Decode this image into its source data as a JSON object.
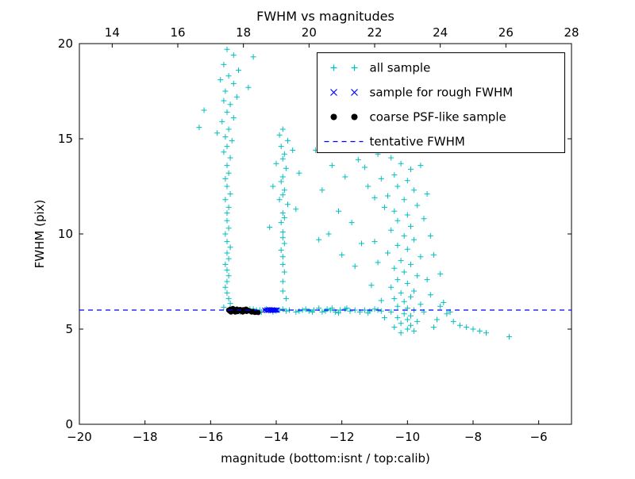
{
  "chart_data": {
    "type": "scatter",
    "title": "FWHM vs magnitudes",
    "xlabel": "magnitude (bottom:isnt / top:calib)",
    "ylabel": "FWHM (pix)",
    "xlim": [
      -20,
      -5
    ],
    "xlim_top": [
      13,
      28
    ],
    "ylim": [
      0,
      20
    ],
    "x_ticks_bottom": [
      -20,
      -18,
      -16,
      -14,
      -12,
      -10,
      -8,
      -6
    ],
    "x_ticks_top": [
      14,
      16,
      18,
      20,
      22,
      24,
      26,
      28
    ],
    "y_ticks": [
      0,
      5,
      10,
      15,
      20
    ],
    "grid": false,
    "legend_position": "upper right",
    "tentative_fwhm_y": 6,
    "colors": {
      "all_sample": "#00bfbf",
      "rough_fwhm": "#0000ff",
      "psf_like": "#000000",
      "tentative_line": "#0000ff"
    },
    "series": [
      {
        "name": "all sample",
        "marker": "plus",
        "color": "#00bfbf",
        "points": [
          [
            -15.5,
            19.7
          ],
          [
            -15.3,
            19.4
          ],
          [
            -14.7,
            19.3
          ],
          [
            -15.6,
            18.9
          ],
          [
            -15.15,
            18.6
          ],
          [
            -15.45,
            18.3
          ],
          [
            -15.7,
            18.1
          ],
          [
            -15.3,
            17.9
          ],
          [
            -14.85,
            17.7
          ],
          [
            -15.55,
            17.5
          ],
          [
            -15.2,
            17.2
          ],
          [
            -15.6,
            17.0
          ],
          [
            -15.4,
            16.8
          ],
          [
            -16.2,
            16.5
          ],
          [
            -15.5,
            16.4
          ],
          [
            -15.3,
            16.1
          ],
          [
            -15.65,
            15.9
          ],
          [
            -16.35,
            15.6
          ],
          [
            -15.45,
            15.5
          ],
          [
            -15.8,
            15.3
          ],
          [
            -15.55,
            15.1
          ],
          [
            -15.35,
            14.9
          ],
          [
            -15.5,
            14.6
          ],
          [
            -15.6,
            14.3
          ],
          [
            -15.4,
            14.0
          ],
          [
            -15.5,
            13.6
          ],
          [
            -15.45,
            13.2
          ],
          [
            -15.55,
            12.9
          ],
          [
            -15.5,
            12.5
          ],
          [
            -15.4,
            12.1
          ],
          [
            -15.55,
            11.8
          ],
          [
            -15.45,
            11.4
          ],
          [
            -15.5,
            11.1
          ],
          [
            -15.5,
            10.7
          ],
          [
            -15.45,
            10.3
          ],
          [
            -15.55,
            10.0
          ],
          [
            -15.5,
            9.6
          ],
          [
            -15.4,
            9.3
          ],
          [
            -15.5,
            9.0
          ],
          [
            -15.45,
            8.7
          ],
          [
            -15.55,
            8.4
          ],
          [
            -15.5,
            8.1
          ],
          [
            -15.45,
            7.8
          ],
          [
            -15.5,
            7.5
          ],
          [
            -15.55,
            7.2
          ],
          [
            -15.5,
            6.9
          ],
          [
            -15.45,
            6.6
          ],
          [
            -15.4,
            6.35
          ],
          [
            -15.6,
            6.15
          ],
          [
            -13.8,
            15.5
          ],
          [
            -13.9,
            15.2
          ],
          [
            -13.65,
            14.9
          ],
          [
            -13.85,
            14.6
          ],
          [
            -13.5,
            14.4
          ],
          [
            -13.75,
            14.2
          ],
          [
            -13.8,
            13.95
          ],
          [
            -14.0,
            13.7
          ],
          [
            -13.7,
            13.45
          ],
          [
            -13.3,
            13.2
          ],
          [
            -13.8,
            13.0
          ],
          [
            -13.85,
            12.75
          ],
          [
            -14.1,
            12.5
          ],
          [
            -13.75,
            12.3
          ],
          [
            -13.8,
            12.05
          ],
          [
            -13.9,
            11.8
          ],
          [
            -13.65,
            11.55
          ],
          [
            -13.4,
            11.3
          ],
          [
            -13.8,
            11.1
          ],
          [
            -13.75,
            10.85
          ],
          [
            -13.85,
            10.6
          ],
          [
            -14.2,
            10.35
          ],
          [
            -13.8,
            10.1
          ],
          [
            -13.8,
            9.8
          ],
          [
            -13.75,
            9.5
          ],
          [
            -13.85,
            9.15
          ],
          [
            -13.8,
            8.8
          ],
          [
            -13.8,
            8.4
          ],
          [
            -13.75,
            8.0
          ],
          [
            -13.8,
            7.5
          ],
          [
            -13.8,
            7.0
          ],
          [
            -13.7,
            6.6
          ],
          [
            -12.8,
            14.4
          ],
          [
            -12.3,
            13.6
          ],
          [
            -11.9,
            13.0
          ],
          [
            -12.6,
            12.3
          ],
          [
            -11.5,
            13.9
          ],
          [
            -11.2,
            12.5
          ],
          [
            -12.1,
            11.2
          ],
          [
            -11.7,
            10.6
          ],
          [
            -12.4,
            10.0
          ],
          [
            -11.0,
            11.9
          ],
          [
            -10.9,
            14.2
          ],
          [
            -11.3,
            13.5
          ],
          [
            -11.4,
            9.5
          ],
          [
            -12.0,
            8.9
          ],
          [
            -12.7,
            9.7
          ],
          [
            -11.6,
            8.3
          ],
          [
            -10.5,
            14.0
          ],
          [
            -10.2,
            13.7
          ],
          [
            -9.9,
            13.4
          ],
          [
            -10.4,
            13.1
          ],
          [
            -10.0,
            12.8
          ],
          [
            -10.3,
            12.5
          ],
          [
            -9.8,
            12.3
          ],
          [
            -10.6,
            12.0
          ],
          [
            -10.1,
            11.8
          ],
          [
            -9.7,
            11.5
          ],
          [
            -10.4,
            11.2
          ],
          [
            -10.0,
            11.0
          ],
          [
            -10.3,
            10.7
          ],
          [
            -9.9,
            10.4
          ],
          [
            -10.5,
            10.2
          ],
          [
            -10.1,
            9.9
          ],
          [
            -9.8,
            9.7
          ],
          [
            -10.3,
            9.4
          ],
          [
            -10.0,
            9.2
          ],
          [
            -10.6,
            9.0
          ],
          [
            -9.6,
            8.8
          ],
          [
            -10.2,
            8.6
          ],
          [
            -9.9,
            8.4
          ],
          [
            -10.4,
            8.2
          ],
          [
            -10.1,
            8.0
          ],
          [
            -9.7,
            7.8
          ],
          [
            -10.3,
            7.6
          ],
          [
            -10.0,
            7.4
          ],
          [
            -10.5,
            7.2
          ],
          [
            -9.8,
            7.0
          ],
          [
            -10.2,
            6.9
          ],
          [
            -9.9,
            6.7
          ],
          [
            -10.4,
            6.6
          ],
          [
            -10.1,
            6.45
          ],
          [
            -9.6,
            6.3
          ],
          [
            -10.3,
            6.2
          ],
          [
            -10.0,
            6.1
          ],
          [
            -9.8,
            6.0
          ],
          [
            -10.5,
            5.9
          ],
          [
            -10.1,
            5.8
          ],
          [
            -9.9,
            5.7
          ],
          [
            -10.3,
            5.6
          ],
          [
            -10.0,
            5.5
          ],
          [
            -9.7,
            5.4
          ],
          [
            -10.2,
            5.3
          ],
          [
            -9.9,
            5.2
          ],
          [
            -10.4,
            5.1
          ],
          [
            -10.0,
            5.0
          ],
          [
            -9.8,
            4.9
          ],
          [
            -10.2,
            4.8
          ],
          [
            -11.0,
            9.6
          ],
          [
            -10.9,
            8.5
          ],
          [
            -11.1,
            7.3
          ],
          [
            -10.8,
            6.5
          ],
          [
            -9.4,
            7.6
          ],
          [
            -9.3,
            6.8
          ],
          [
            -9.2,
            8.9
          ],
          [
            -9.0,
            6.2
          ],
          [
            -9.5,
            5.9
          ],
          [
            -9.1,
            5.5
          ],
          [
            -8.8,
            5.8
          ],
          [
            -8.9,
            6.4
          ],
          [
            -10.7,
            11.4
          ],
          [
            -10.8,
            12.9
          ],
          [
            -9.5,
            10.8
          ],
          [
            -9.3,
            9.9
          ],
          [
            -9.4,
            12.1
          ],
          [
            -9.6,
            13.6
          ],
          [
            -10.7,
            5.6
          ],
          [
            -9.2,
            5.1
          ],
          [
            -8.7,
            5.9
          ],
          [
            -9.0,
            7.9
          ],
          [
            -8.6,
            5.4
          ],
          [
            -8.4,
            5.2
          ],
          [
            -8.2,
            5.1
          ],
          [
            -8.0,
            5.0
          ],
          [
            -7.8,
            4.9
          ],
          [
            -7.6,
            4.8
          ],
          [
            -6.9,
            4.6
          ],
          [
            -15.2,
            6.0
          ],
          [
            -15.0,
            5.95
          ],
          [
            -14.8,
            6.05
          ],
          [
            -14.6,
            6.0
          ],
          [
            -14.45,
            5.9
          ],
          [
            -14.2,
            6.0
          ],
          [
            -14.0,
            5.95
          ],
          [
            -13.8,
            6.05
          ],
          [
            -13.6,
            6.0
          ],
          [
            -13.4,
            5.9
          ],
          [
            -13.2,
            6.0
          ],
          [
            -13.0,
            5.95
          ],
          [
            -12.85,
            6.0
          ],
          [
            -12.7,
            6.1
          ],
          [
            -12.5,
            5.95
          ],
          [
            -12.35,
            6.0
          ],
          [
            -12.2,
            5.9
          ],
          [
            -12.05,
            6.0
          ],
          [
            -11.9,
            6.05
          ],
          [
            -11.75,
            5.95
          ],
          [
            -11.6,
            6.0
          ],
          [
            -11.45,
            5.9
          ],
          [
            -11.3,
            6.0
          ],
          [
            -11.15,
            5.95
          ],
          [
            -11.0,
            6.05
          ],
          [
            -10.9,
            6.0
          ],
          [
            -12.45,
            6.05
          ],
          [
            -12.6,
            5.9
          ],
          [
            -11.85,
            6.1
          ],
          [
            -12.1,
            5.85
          ],
          [
            -13.1,
            6.05
          ],
          [
            -13.3,
            5.95
          ],
          [
            -14.5,
            6.0
          ],
          [
            -14.1,
            5.9
          ],
          [
            -14.7,
            6.05
          ],
          [
            -15.1,
            5.9
          ],
          [
            -13.9,
            6.0
          ],
          [
            -14.3,
            6.05
          ],
          [
            -12.9,
            5.9
          ],
          [
            -11.2,
            5.85
          ],
          [
            -10.8,
            5.95
          ],
          [
            -13.7,
            5.95
          ],
          [
            -12.3,
            6.1
          ]
        ]
      },
      {
        "name": "sample for rough FWHM",
        "marker": "x",
        "color": "#0000ff",
        "points": [
          [
            -14.35,
            6.0
          ],
          [
            -14.3,
            5.97
          ],
          [
            -14.28,
            6.02
          ],
          [
            -14.25,
            5.98
          ],
          [
            -14.22,
            6.0
          ],
          [
            -14.2,
            6.03
          ],
          [
            -14.17,
            5.97
          ],
          [
            -14.15,
            6.0
          ],
          [
            -14.12,
            6.02
          ],
          [
            -14.1,
            5.98
          ],
          [
            -14.08,
            6.0
          ],
          [
            -14.05,
            6.01
          ],
          [
            -14.02,
            5.99
          ],
          [
            -14.0,
            6.0
          ],
          [
            -13.97,
            6.0
          ]
        ]
      },
      {
        "name": "coarse PSF-like sample",
        "marker": "dot",
        "color": "#000000",
        "points": [
          [
            -15.45,
            6.0
          ],
          [
            -15.42,
            5.95
          ],
          [
            -15.4,
            6.05
          ],
          [
            -15.38,
            5.9
          ],
          [
            -15.35,
            6.0
          ],
          [
            -15.32,
            6.08
          ],
          [
            -15.3,
            5.95
          ],
          [
            -15.28,
            6.02
          ],
          [
            -15.25,
            5.9
          ],
          [
            -15.22,
            6.0
          ],
          [
            -15.2,
            6.05
          ],
          [
            -15.18,
            5.92
          ],
          [
            -15.15,
            6.0
          ],
          [
            -15.12,
            5.97
          ],
          [
            -15.1,
            6.03
          ],
          [
            -15.08,
            5.95
          ],
          [
            -15.05,
            6.0
          ],
          [
            -15.02,
            5.9
          ],
          [
            -15.0,
            6.02
          ],
          [
            -14.97,
            5.95
          ],
          [
            -14.95,
            6.0
          ],
          [
            -14.92,
            6.05
          ],
          [
            -14.9,
            5.93
          ],
          [
            -14.87,
            6.0
          ],
          [
            -14.85,
            5.97
          ],
          [
            -14.8,
            5.95
          ],
          [
            -14.75,
            5.9
          ],
          [
            -14.7,
            5.93
          ],
          [
            -14.65,
            5.88
          ],
          [
            -14.6,
            5.9
          ],
          [
            -14.55,
            5.87
          ]
        ]
      },
      {
        "name": "tentative FWHM",
        "marker": "dashed-line",
        "color": "#0000ff",
        "y": 6
      }
    ]
  }
}
